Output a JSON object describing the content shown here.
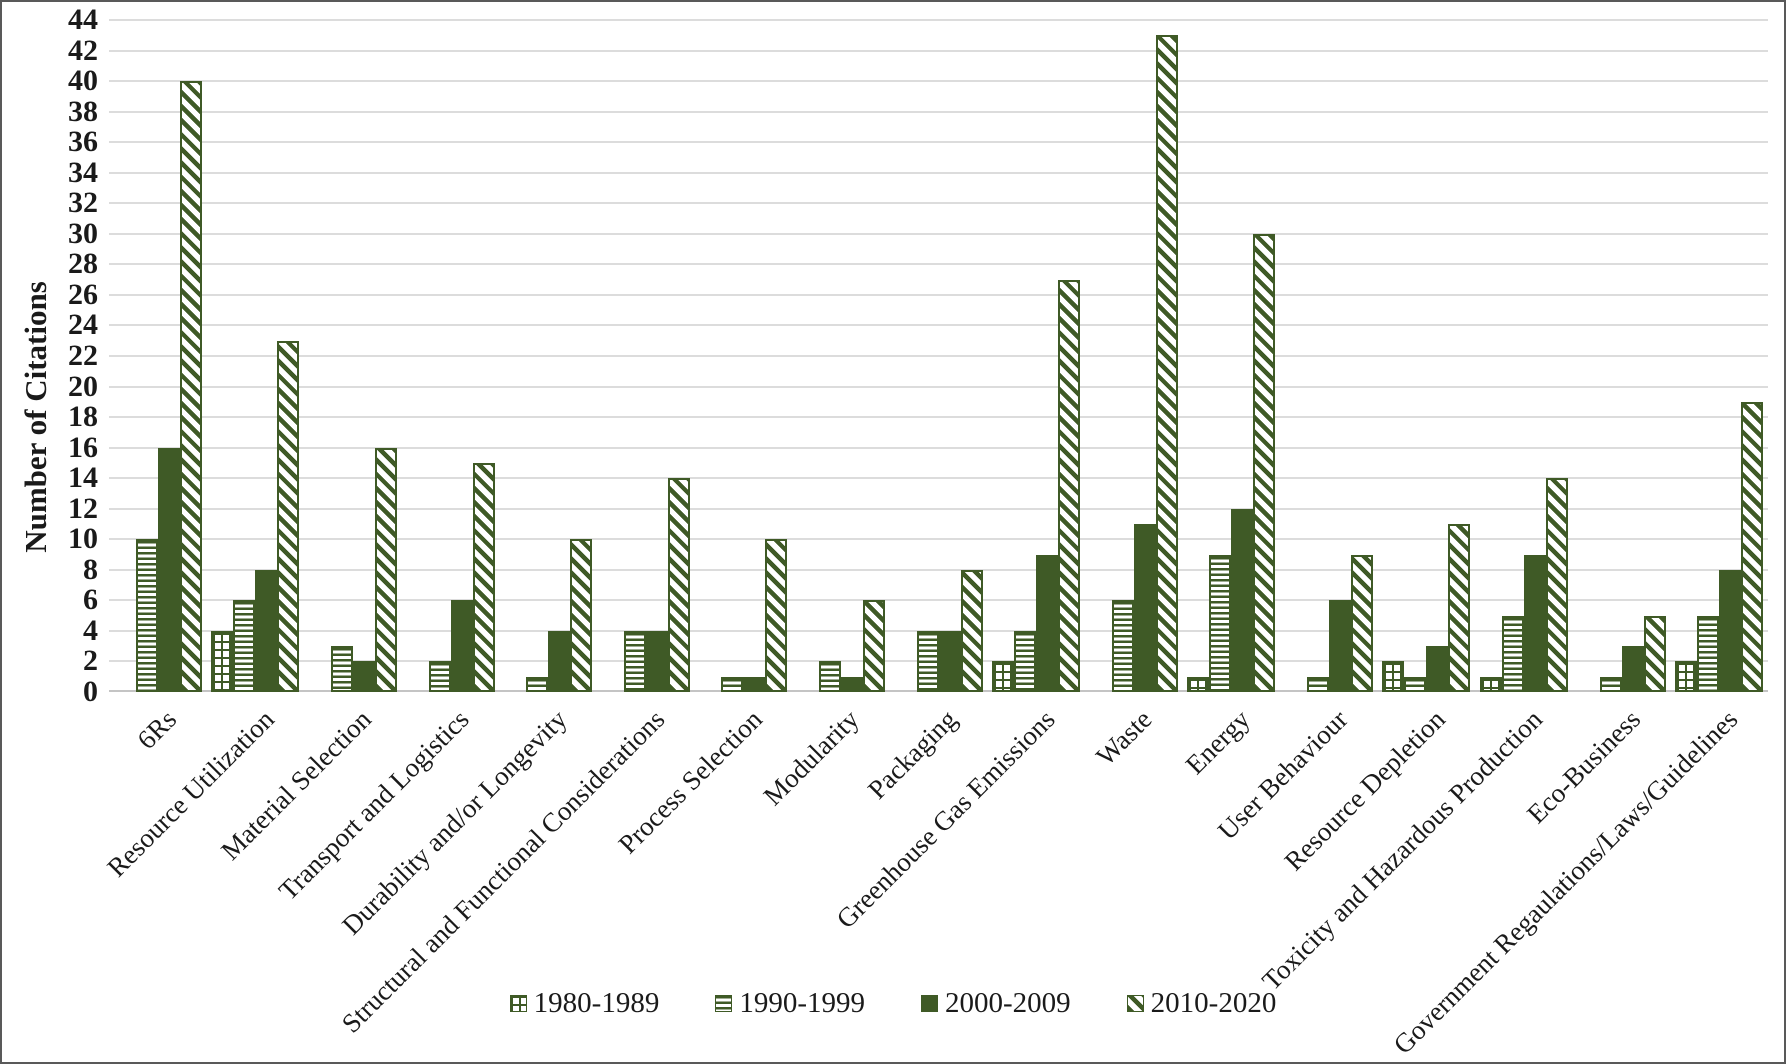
{
  "chart_data": {
    "type": "bar",
    "title": "",
    "xlabel": "",
    "ylabel": "Number of Citations",
    "ylim": [
      0,
      44
    ],
    "ytick_step": 2,
    "grid": true,
    "legend_position": "bottom",
    "categories": [
      "6Rs",
      "Resource Utilization",
      "Material Selection",
      "Transport and Logistics",
      "Durability and/or Longevity",
      "Structural and Functional Considerations",
      "Process Selection",
      "Modularity",
      "Packaging",
      "Greenhouse Gas Emissions",
      "Waste",
      "Energy",
      "User Behaviour",
      "Resource Depletion",
      "Toxicity and Hazardous Production",
      "Eco-Business",
      "Government Regaulations/Laws/Guidelines"
    ],
    "series": [
      {
        "name": "1980-1989",
        "pattern": "grid",
        "values": [
          0,
          4,
          0,
          0,
          0,
          0,
          0,
          0,
          0,
          2,
          0,
          1,
          0,
          2,
          1,
          0,
          2
        ]
      },
      {
        "name": "1990-1999",
        "pattern": "horizontal-lines",
        "values": [
          10,
          6,
          3,
          2,
          1,
          4,
          1,
          2,
          4,
          4,
          6,
          9,
          1,
          1,
          5,
          1,
          5
        ]
      },
      {
        "name": "2000-2009",
        "pattern": "solid",
        "values": [
          16,
          8,
          2,
          6,
          4,
          4,
          1,
          1,
          4,
          9,
          11,
          12,
          6,
          3,
          9,
          3,
          8
        ]
      },
      {
        "name": "2010-2020",
        "pattern": "diagonal-stripes",
        "values": [
          40,
          23,
          16,
          15,
          10,
          14,
          10,
          6,
          8,
          27,
          43,
          30,
          9,
          11,
          14,
          5,
          19
        ]
      }
    ],
    "colors": {
      "bar_green": "#3F5A26",
      "gridline": "#DCDCDC",
      "axis_line": "#C4C4C4",
      "text": "#1A1A1A",
      "background": "#FFFFFF"
    }
  }
}
